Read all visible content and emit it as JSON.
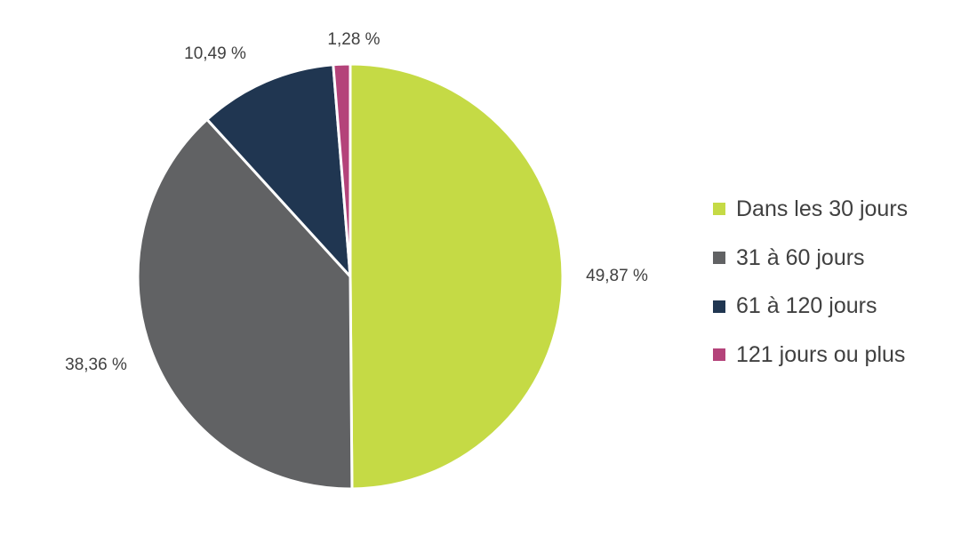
{
  "chart_data": {
    "type": "pie",
    "title": "",
    "categories": [
      "Dans les 30 jours",
      "31 à 60 jours",
      "61 à 120 jours",
      "121 jours ou plus"
    ],
    "values": [
      49.87,
      38.36,
      10.49,
      1.28
    ],
    "data_labels": [
      "49,87 %",
      "38,36 %",
      "10,49 %",
      "1,28 %"
    ],
    "colors": [
      "#C5DA45",
      "#616264",
      "#203651",
      "#B4437A"
    ],
    "start_angle_deg": 0,
    "direction": "clockwise",
    "legend_position": "right"
  },
  "legend": {
    "items": [
      {
        "label": "Dans les 30 jours",
        "color": "#C5DA45"
      },
      {
        "label": "31 à 60 jours",
        "color": "#616264"
      },
      {
        "label": "61 à 120 jours",
        "color": "#203651"
      },
      {
        "label": "121 jours ou plus",
        "color": "#B4437A"
      }
    ]
  }
}
